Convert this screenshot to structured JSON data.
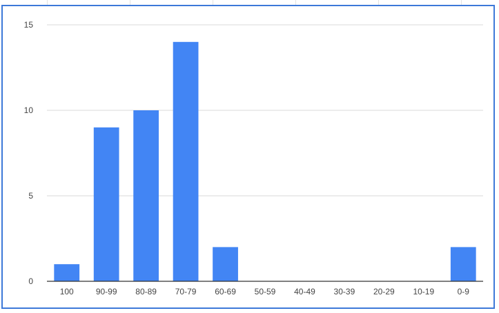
{
  "chart_data": {
    "type": "bar",
    "categories": [
      "100",
      "90-99",
      "80-89",
      "70-79",
      "60-69",
      "50-59",
      "40-49",
      "30-39",
      "20-29",
      "10-19",
      "0-9"
    ],
    "values": [
      1,
      9,
      10,
      14,
      2,
      0,
      0,
      0,
      0,
      0,
      2
    ],
    "title": "",
    "xlabel": "",
    "ylabel": "",
    "ylim": [
      0,
      15
    ],
    "yticks": [
      "0",
      "5",
      "10",
      "15"
    ],
    "grid": true,
    "legend": "none",
    "colors": {
      "bar": "#4285f4",
      "grid": "#d9d9d9",
      "axis": "#333333",
      "frame": "#3c78d8"
    }
  }
}
